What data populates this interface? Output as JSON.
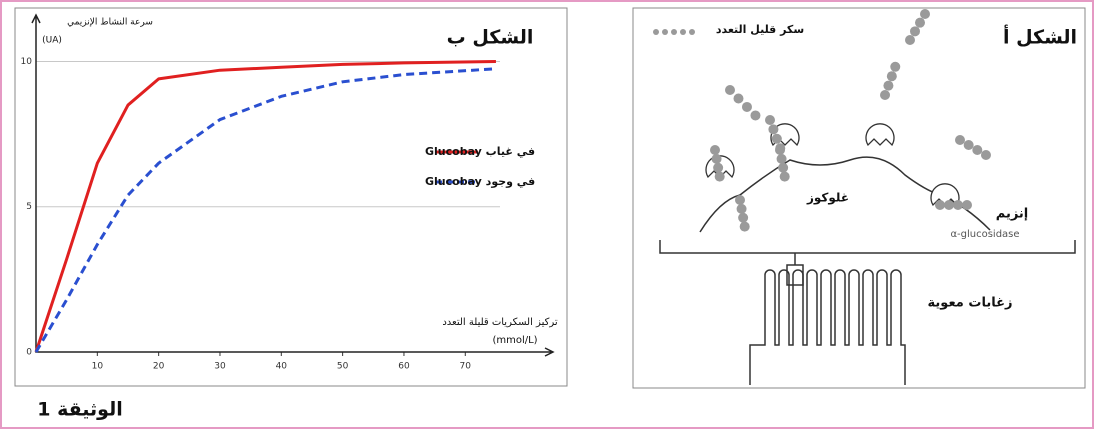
{
  "chart_data": {
    "type": "line",
    "title": "الشكل ب",
    "y_label": "سرعة النشاط الإنزيمي",
    "y_unit": "(UA)",
    "x_label": "تركيز السكريات قليلة التعدد",
    "x_unit": "(mmol/L)",
    "x": [
      0,
      5,
      10,
      15,
      20,
      30,
      40,
      50,
      60,
      75
    ],
    "series": [
      {
        "name": "في غياب Glucobay",
        "color": "#e02020",
        "dash": false,
        "values": [
          0,
          3.2,
          6.5,
          8.5,
          9.4,
          9.7,
          9.8,
          9.9,
          9.95,
          10
        ]
      },
      {
        "name": "في وجود Glucobay",
        "color": "#2a4fd0",
        "dash": true,
        "values": [
          0,
          1.8,
          3.7,
          5.4,
          6.5,
          8.0,
          8.8,
          9.3,
          9.55,
          9.75
        ]
      }
    ],
    "xlim": [
      0,
      83
    ],
    "ylim": [
      0,
      11.6
    ],
    "xticks": [
      10,
      20,
      30,
      40,
      50,
      60,
      70
    ],
    "yticks": [
      0,
      5,
      10
    ],
    "grid": true,
    "legend": "right"
  },
  "figure_a": {
    "title": "الشكل أ",
    "oligosaccharide": "سكر قليل التعدد",
    "glucose": "غلوكوز",
    "enzyme": "إنزيم",
    "enzyme_name": "α-glucosidase",
    "villi": "زغابات معوية"
  },
  "caption": "الوثيقة 1"
}
